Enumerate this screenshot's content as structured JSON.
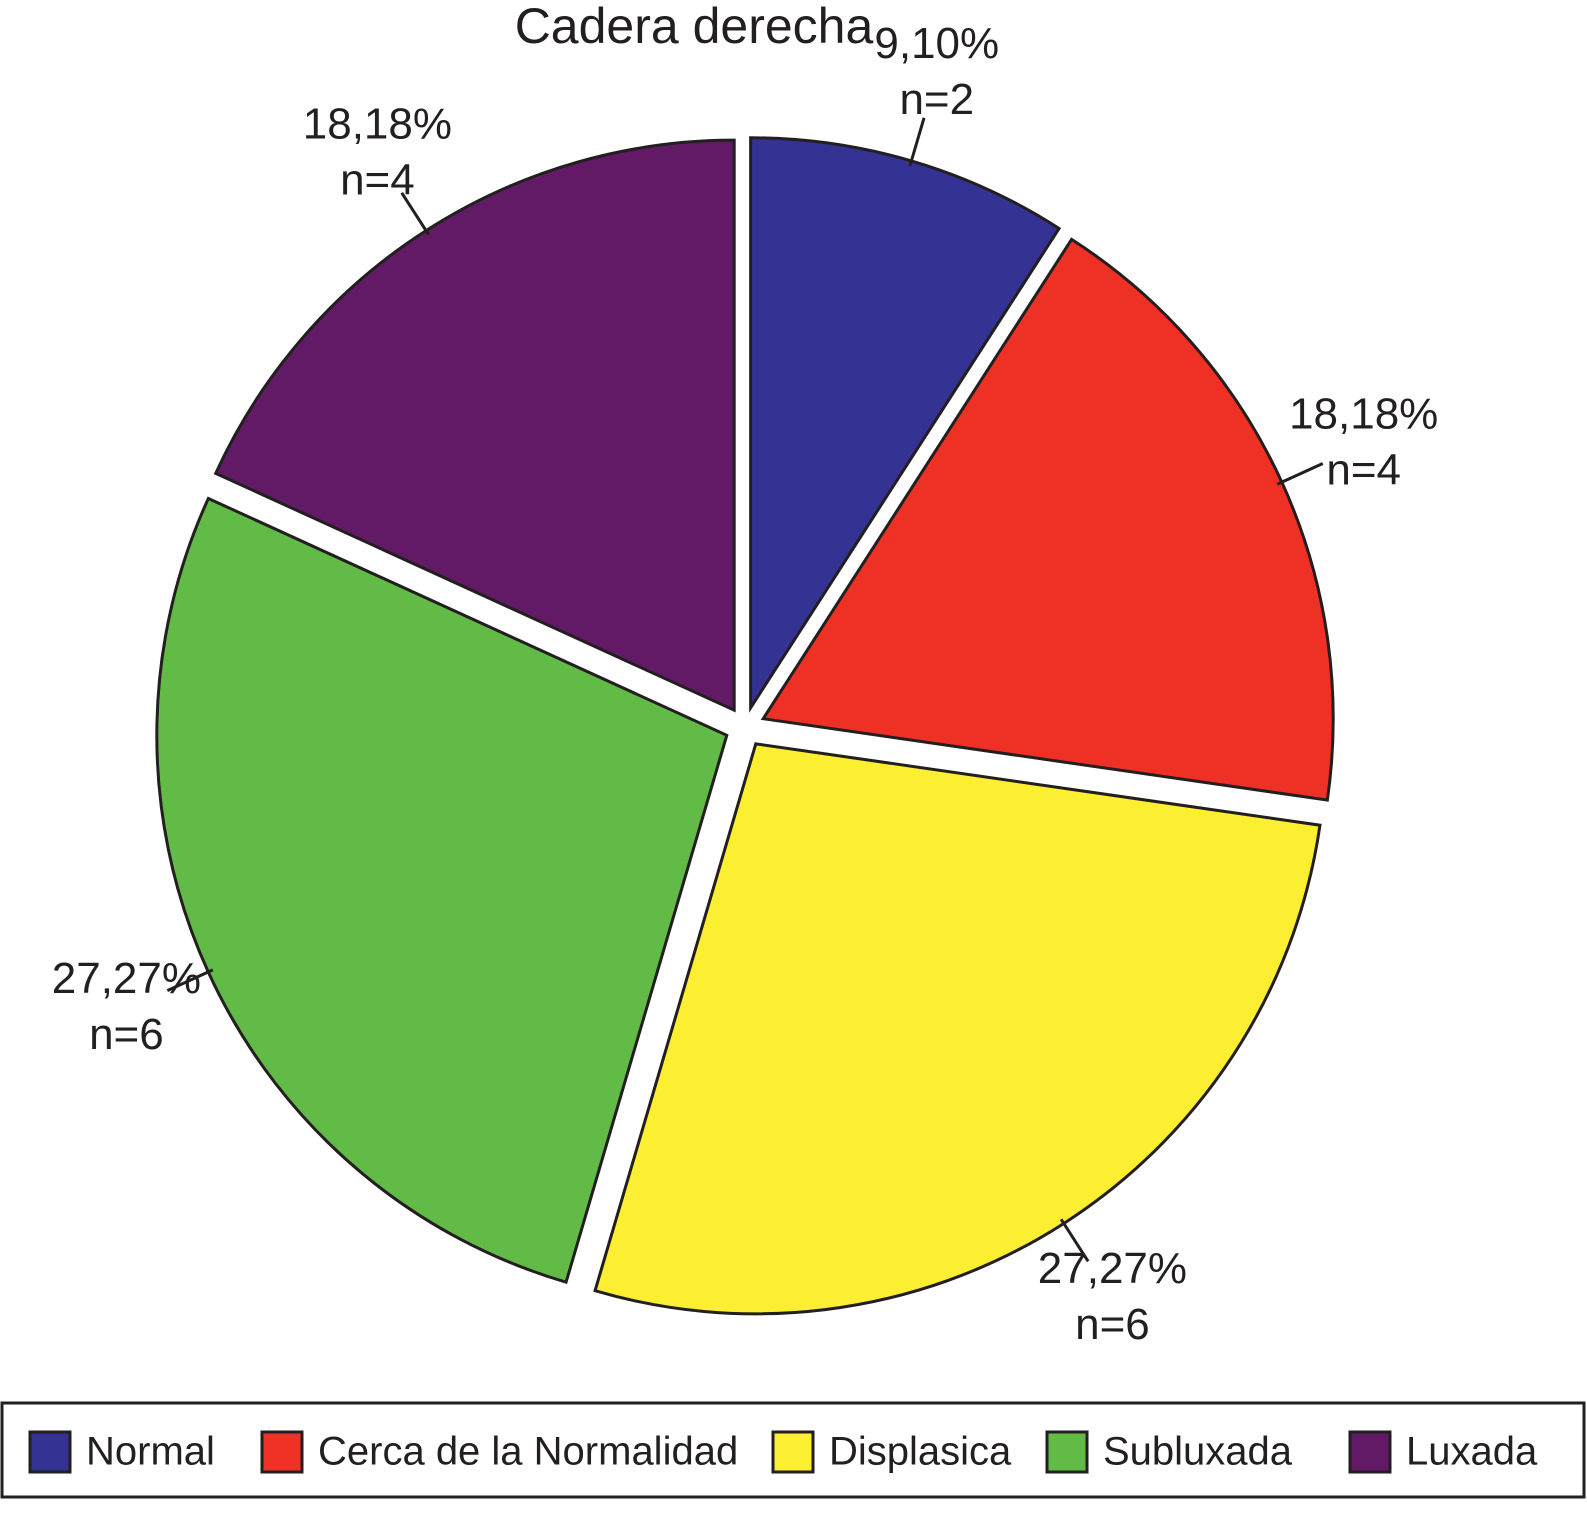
{
  "chart_data": {
    "type": "pie",
    "title": "Cadera derecha",
    "categories": [
      "Normal",
      "Cerca de la Normalidad",
      "Displasica",
      "Subluxada",
      "Luxada"
    ],
    "values": [
      9.1,
      18.18,
      27.27,
      27.27,
      18.18
    ],
    "value_labels": [
      "9,10%",
      "18,18%",
      "27,27%",
      "27,27%",
      "18,18%"
    ],
    "count_labels": [
      "n=2",
      "n=4",
      "n=6",
      "n=6",
      "n=4"
    ],
    "colors": [
      "#343393",
      "#ee3124",
      "#fcee31",
      "#62bb47",
      "#621a67"
    ],
    "legend": "bottom"
  }
}
